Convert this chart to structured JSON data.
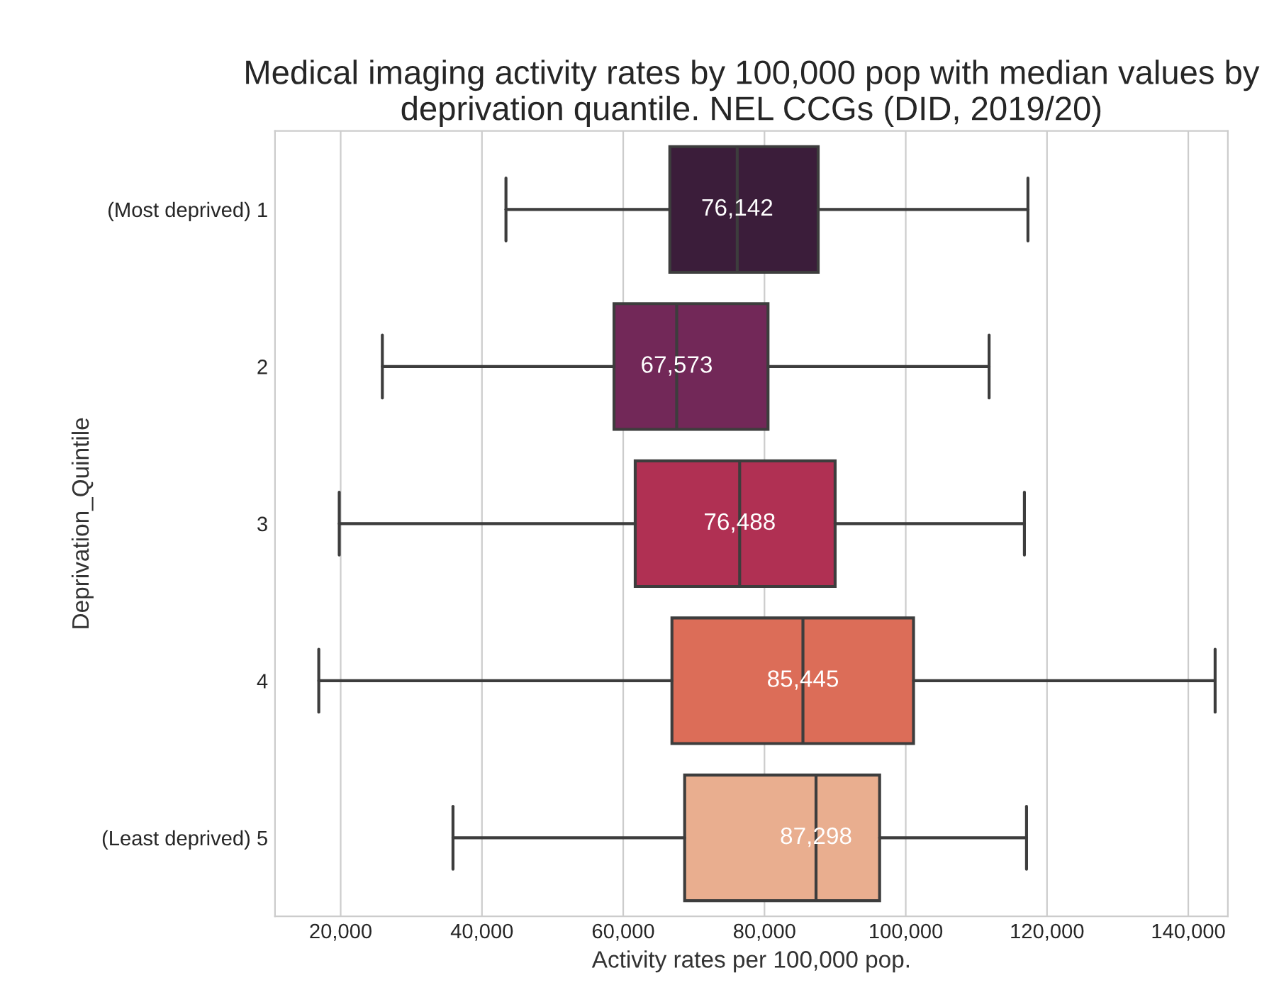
{
  "chart_data": {
    "type": "box",
    "orientation": "horizontal",
    "title": "Medical imaging activity rates by 100,000 pop with median values by deprivation quantile. NEL CCGs (DID, 2019/20)",
    "xlabel": "Activity rates per 100,000 pop.",
    "ylabel": "Deprivation_Quintile",
    "categories": [
      "(Most deprived) 1",
      "2",
      "3",
      "4",
      "(Least deprived) 5"
    ],
    "colors": [
      "#3b1d3a",
      "#722858",
      "#b03053",
      "#dc6d58",
      "#e9ae8f"
    ],
    "boxes": [
      {
        "low": 43400,
        "q1": 66600,
        "median": 76142,
        "q3": 87600,
        "high": 117300
      },
      {
        "low": 25900,
        "q1": 58700,
        "median": 67573,
        "q3": 80500,
        "high": 111800
      },
      {
        "low": 19800,
        "q1": 61700,
        "median": 76488,
        "q3": 90000,
        "high": 116800
      },
      {
        "low": 16900,
        "q1": 66900,
        "median": 85445,
        "q3": 101100,
        "high": 143800
      },
      {
        "low": 35900,
        "q1": 68700,
        "median": 87298,
        "q3": 96300,
        "high": 117100
      }
    ],
    "value_labels": [
      "76,142",
      "67,573",
      "76,488",
      "85,445",
      "87,298"
    ],
    "xlim": [
      10700,
      145600
    ],
    "xticks": [
      {
        "value": 20000,
        "label": "20,000"
      },
      {
        "value": 40000,
        "label": "40,000"
      },
      {
        "value": 60000,
        "label": "60,000"
      },
      {
        "value": 80000,
        "label": "80,000"
      },
      {
        "value": 100000,
        "label": "100,000"
      },
      {
        "value": 120000,
        "label": "120,000"
      },
      {
        "value": 140000,
        "label": "140,000"
      }
    ],
    "grid": "x"
  }
}
